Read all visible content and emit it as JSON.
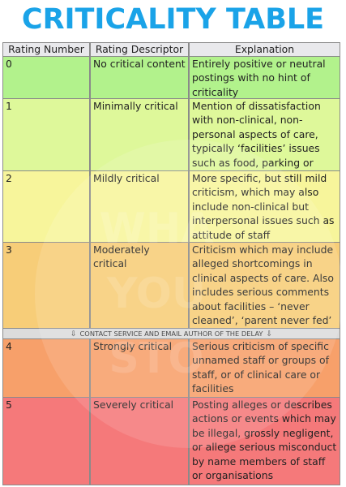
{
  "title": "CRITICALITY TABLE",
  "headers": {
    "rating_number": "Rating Number",
    "rating_descriptor": "Rating Descriptor",
    "explanation": "Explanation"
  },
  "rows": [
    {
      "number": "0",
      "descriptor": "No critical content",
      "explanation": "Entirely positive or neutral postings with no hint of criticality",
      "color": "#b2f28c"
    },
    {
      "number": "1",
      "descriptor": "Minimally critical",
      "explanation": "Mention of dissatisfaction with non-clinical, non-personal aspects of care, typically ‘facilities’ issues such as food, parking or waiting",
      "color": "#def89a"
    },
    {
      "number": "2",
      "descriptor": "Mildly critical",
      "explanation": "More specific, but still mild criticism, which may also include non-clinical but interpersonal issues such as attitude of staff",
      "color": "#f7f59b"
    },
    {
      "number": "3",
      "descriptor": "Moderately critical",
      "explanation": "Criticism which may include alleged shortcomings in clinical aspects of care. Also includes serious comments about facilities – ‘never cleaned’, ‘parent never fed’",
      "color": "#f7cd78"
    },
    {
      "number": "4",
      "descriptor": "Strongly critical",
      "explanation": "Serious criticism of specific unnamed staff or groups of staff, or of clinical care or facilities",
      "color": "#f7a06a"
    },
    {
      "number": "5",
      "descriptor": "Severely critical",
      "explanation": "Posting alleges or describes actions or events which may be illegal, grossly negligent, or allege serious misconduct by name members of staff or organisations",
      "color": "#f5797a"
    }
  ],
  "banner": {
    "text": "CONTACT SERVICE AND EMAIL AUTHOR OF THE DELAY",
    "arrow": "⇩"
  },
  "watermark": {
    "line1": "WHA",
    "line2": "YOU",
    "line3": "STO"
  }
}
